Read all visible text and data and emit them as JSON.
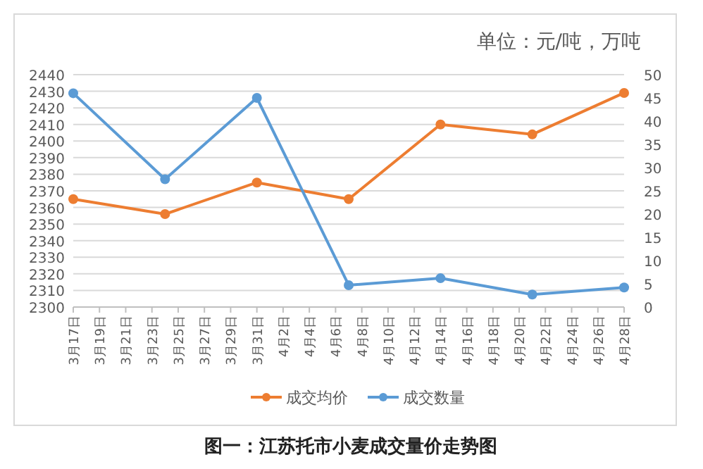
{
  "chart_data": {
    "type": "line",
    "title": "单位：元/吨，万吨",
    "annotations": [
      "图一：江苏托市小麦成交量价走势图"
    ],
    "x": [
      "--03-17",
      "--03-24",
      "--03-31",
      "--04-07",
      "--04-14",
      "--04-21",
      "--04-28"
    ],
    "series": [
      {
        "name": "成交均价",
        "color": "#ed7d31",
        "values": [
          2365,
          2356,
          2375,
          2365,
          2410,
          2404,
          2429
        ]
      },
      {
        "name": "成交数量",
        "color": "#5b9bd5",
        "axis": "y2",
        "values": [
          46,
          27.5,
          45,
          4.7,
          6.2,
          2.7,
          4.2
        ]
      }
    ],
    "xticks": [
      {
        "value": "--03-17",
        "label": "3月17日"
      },
      {
        "value": "--03-19",
        "label": "3月19日"
      },
      {
        "value": "--03-21",
        "label": "3月21日"
      },
      {
        "value": "--03-23",
        "label": "3月23日"
      },
      {
        "value": "--03-25",
        "label": "3月25日"
      },
      {
        "value": "--03-27",
        "label": "3月27日"
      },
      {
        "value": "--03-29",
        "label": "3月29日"
      },
      {
        "value": "--03-31",
        "label": "3月31日"
      },
      {
        "value": "--04-02",
        "label": "4月2日"
      },
      {
        "value": "--04-04",
        "label": "4月4日"
      },
      {
        "value": "--04-06",
        "label": "4月6日"
      },
      {
        "value": "--04-08",
        "label": "4月8日"
      },
      {
        "value": "--04-10",
        "label": "4月10日"
      },
      {
        "value": "--04-12",
        "label": "4月12日"
      },
      {
        "value": "--04-14",
        "label": "4月14日"
      },
      {
        "value": "--04-16",
        "label": "4月16日"
      },
      {
        "value": "--04-18",
        "label": "4月18日"
      },
      {
        "value": "--04-20",
        "label": "4月20日"
      },
      {
        "value": "--04-22",
        "label": "4月22日"
      },
      {
        "value": "--04-24",
        "label": "4月24日"
      },
      {
        "value": "--04-26",
        "label": "4月26日"
      },
      {
        "value": "--04-28",
        "label": "4月28日"
      }
    ],
    "xlim": [
      "--03-17",
      "--04-28"
    ],
    "ylim": [
      2300,
      2440
    ],
    "yticks": [
      2300,
      2310,
      2320,
      2330,
      2340,
      2350,
      2360,
      2370,
      2380,
      2390,
      2400,
      2410,
      2420,
      2430,
      2440
    ],
    "y2lim": [
      0,
      50
    ],
    "y2ticks": [
      0,
      5,
      10,
      15,
      20,
      25,
      30,
      35,
      40,
      45,
      50
    ],
    "grid": "y",
    "legend": "bottom",
    "marker": "circle",
    "line_style": "solid"
  }
}
